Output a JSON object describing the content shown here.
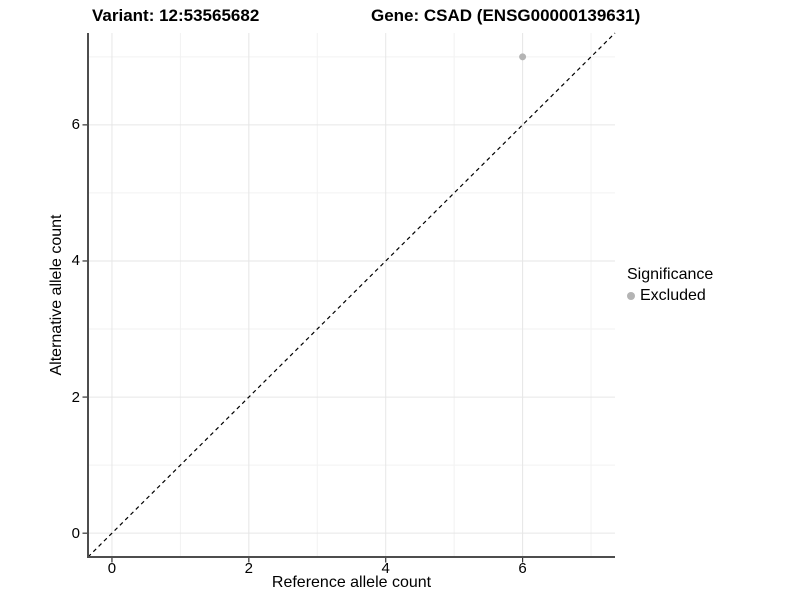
{
  "titles": {
    "variant": "Variant: 12:53565682",
    "gene": "Gene: CSAD (ENSG00000139631)"
  },
  "chart_data": {
    "type": "scatter",
    "title": "Variant: 12:53565682 / Gene: CSAD (ENSG00000139631)",
    "xlabel": "Reference allele count",
    "ylabel": "Alternative allele count",
    "xlim": [
      -0.35,
      7.35
    ],
    "ylim": [
      -0.35,
      7.35
    ],
    "xticks": [
      0,
      2,
      4,
      6
    ],
    "yticks": [
      0,
      2,
      4,
      6
    ],
    "minor_xticks": [
      1,
      3,
      5,
      7
    ],
    "minor_yticks": [
      1,
      3,
      5,
      7
    ],
    "grid": true,
    "identity_line": {
      "style": "dashed",
      "slope": 1,
      "intercept": 0
    },
    "series": [
      {
        "name": "Excluded",
        "points": [
          {
            "x": 6,
            "y": 7
          }
        ]
      }
    ],
    "legend": {
      "title": "Significance",
      "position": "right",
      "entries": [
        {
          "label": "Excluded",
          "color": "#b4b4b4"
        }
      ]
    }
  },
  "colors": {
    "point": "#b4b4b4",
    "grid_major": "#e6e6e6",
    "grid_minor": "#f2f2f2",
    "axis_line": "#4d4d4d",
    "tick_mark": "#333333",
    "identity_line": "#000000",
    "background": "#ffffff",
    "text": "#000000"
  }
}
